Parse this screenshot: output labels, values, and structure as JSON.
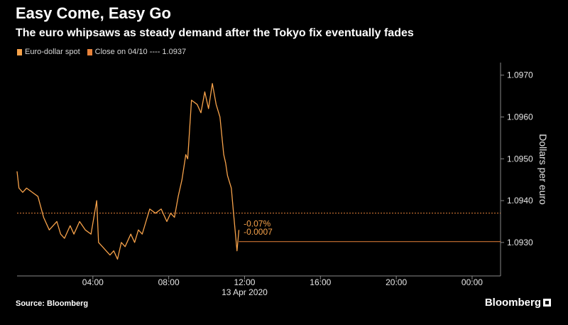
{
  "title": "Easy Come, Easy Go",
  "subtitle": "The euro whipsaws as steady demand after the Tokyo fix eventually fades",
  "legend": {
    "series_label": "Euro-dollar spot",
    "close_label": "Close on 04/10 ---- 1.0937"
  },
  "source": "Source: Bloomberg",
  "brand": "Bloomberg",
  "colors": {
    "series": "#f7a24a",
    "close_line": "#e8823a",
    "axis": "#888888",
    "background": "#000000"
  },
  "chart_data": {
    "type": "line",
    "title": "Easy Come, Easy Go",
    "subtitle": "The euro whipsaws as steady demand after the Tokyo fix eventually fades",
    "xlabel": "13 Apr 2020",
    "ylabel": "Dollars per euro",
    "x_unit": "hours",
    "xlim": [
      0,
      25.5
    ],
    "ylim": [
      1.0922,
      1.0973
    ],
    "x_ticks": [
      {
        "value": 4,
        "label": "04:00"
      },
      {
        "value": 8,
        "label": "08:00"
      },
      {
        "value": 12,
        "label": "12:00"
      },
      {
        "value": 16,
        "label": "16:00"
      },
      {
        "value": 20,
        "label": "20:00"
      },
      {
        "value": 24,
        "label": "00:00"
      }
    ],
    "y_ticks": [
      {
        "value": 1.093,
        "label": "1.0930"
      },
      {
        "value": 1.094,
        "label": "1.0940"
      },
      {
        "value": 1.095,
        "label": "1.0950"
      },
      {
        "value": 1.096,
        "label": "1.0960"
      },
      {
        "value": 1.097,
        "label": "1.0970"
      }
    ],
    "reference_lines": [
      {
        "name": "Close on 04/10",
        "value": 1.0937
      }
    ],
    "annotations": [
      {
        "text": "-0.07%",
        "x": 11.8,
        "y": 1.09345
      },
      {
        "text": "-0.0007",
        "x": 11.8,
        "y": 1.09325
      }
    ],
    "series": [
      {
        "name": "Euro-dollar spot",
        "x": [
          0,
          0.1,
          0.3,
          0.5,
          0.8,
          1.1,
          1.4,
          1.7,
          1.9,
          2.1,
          2.3,
          2.5,
          2.8,
          3.0,
          3.3,
          3.6,
          3.9,
          4.2,
          4.3,
          4.5,
          4.7,
          4.9,
          5.1,
          5.3,
          5.5,
          5.7,
          6.0,
          6.2,
          6.4,
          6.6,
          6.8,
          7.0,
          7.3,
          7.6,
          7.9,
          8.1,
          8.3,
          8.5,
          8.7,
          8.9,
          9.0,
          9.2,
          9.5,
          9.7,
          9.9,
          10.1,
          10.3,
          10.5,
          10.7,
          10.9,
          11.0,
          11.1,
          11.3,
          11.4,
          11.5,
          11.6,
          11.7
        ],
        "y": [
          1.0947,
          1.0943,
          1.0942,
          1.0943,
          1.0942,
          1.0941,
          1.0936,
          1.0933,
          1.0934,
          1.0935,
          1.0932,
          1.0931,
          1.0934,
          1.0932,
          1.0935,
          1.0933,
          1.0932,
          1.094,
          1.093,
          1.0929,
          1.0928,
          1.0927,
          1.0928,
          1.0926,
          1.093,
          1.0929,
          1.0932,
          1.093,
          1.0933,
          1.0932,
          1.0935,
          1.0938,
          1.0937,
          1.0938,
          1.0935,
          1.0937,
          1.0936,
          1.0941,
          1.0945,
          1.0951,
          1.095,
          1.0964,
          1.0963,
          1.0961,
          1.0966,
          1.0962,
          1.0968,
          1.0963,
          1.096,
          1.0951,
          1.0949,
          1.0946,
          1.0943,
          1.0938,
          1.0933,
          1.0928,
          1.0933
        ]
      }
    ]
  }
}
